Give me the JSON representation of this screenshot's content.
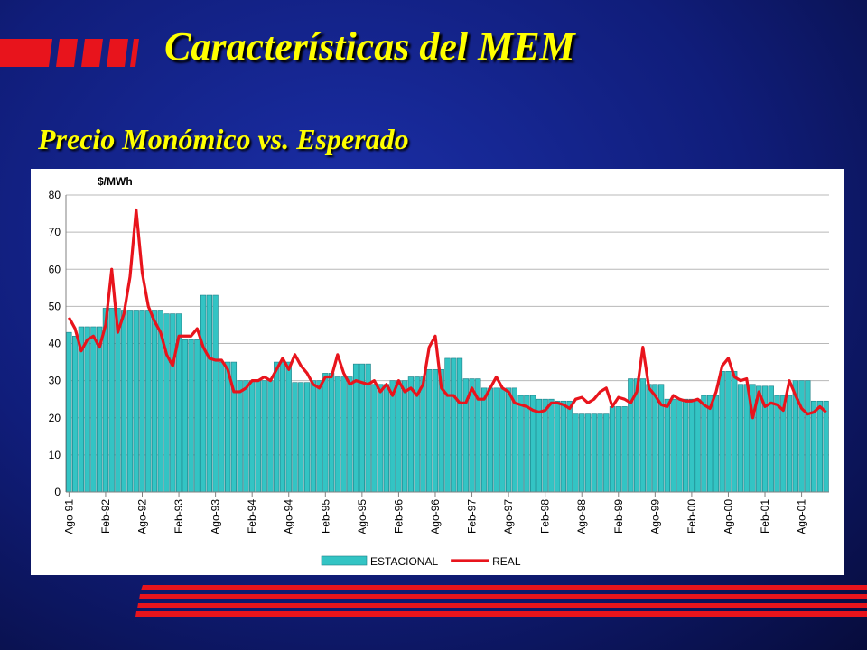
{
  "slide": {
    "title": "Características del MEM",
    "subtitle": "Precio Monómico vs. Esperado"
  },
  "chart_data": {
    "type": "bar-line",
    "y_axis_label": "$/MWh",
    "categories": [
      "Ago-91",
      null,
      null,
      null,
      null,
      null,
      "Feb-92",
      null,
      null,
      null,
      null,
      null,
      "Ago-92",
      null,
      null,
      null,
      null,
      null,
      "Feb-93",
      null,
      null,
      null,
      null,
      null,
      "Ago-93",
      null,
      null,
      null,
      null,
      null,
      "Feb-94",
      null,
      null,
      null,
      null,
      null,
      "Ago-94",
      null,
      null,
      null,
      null,
      null,
      "Feb-95",
      null,
      null,
      null,
      null,
      null,
      "Ago-95",
      null,
      null,
      null,
      null,
      null,
      "Feb-96",
      null,
      null,
      null,
      null,
      null,
      "Ago-96",
      null,
      null,
      null,
      null,
      null,
      "Feb-97",
      null,
      null,
      null,
      null,
      null,
      "Ago-97",
      null,
      null,
      null,
      null,
      null,
      "Feb-98",
      null,
      null,
      null,
      null,
      null,
      "Ago-98",
      null,
      null,
      null,
      null,
      null,
      "Feb-99",
      null,
      null,
      null,
      null,
      null,
      "Ago-99",
      null,
      null,
      null,
      null,
      null,
      "Feb-00",
      null,
      null,
      null,
      null,
      null,
      "Ago-00",
      null,
      null,
      null,
      null,
      null,
      "Feb-01",
      null,
      null,
      null,
      null,
      null,
      "Ago-01",
      null,
      null,
      null,
      null
    ],
    "series": [
      {
        "name": "ESTACIONAL",
        "kind": "bar",
        "color": "#33c4c4",
        "values": [
          43,
          42,
          44.5,
          44.5,
          44.5,
          44.5,
          49.5,
          49.5,
          49.5,
          49,
          49,
          49,
          49,
          49,
          49,
          49,
          48,
          48,
          48,
          41,
          41,
          41,
          53,
          53,
          53,
          35,
          35,
          35,
          30,
          30,
          30,
          30,
          30,
          30,
          35,
          35,
          35,
          29.5,
          29.5,
          29.5,
          30,
          30,
          32,
          32,
          31,
          31,
          31,
          34.5,
          34.5,
          34.5,
          29,
          29,
          29,
          30,
          30,
          30,
          31,
          31,
          31,
          33,
          33,
          33,
          36,
          36,
          36,
          30.5,
          30.5,
          30.5,
          28,
          28,
          28,
          28,
          28,
          28,
          26,
          26,
          26,
          25,
          25,
          25,
          24.5,
          24.5,
          24.5,
          21,
          21,
          21,
          21,
          21,
          21,
          23,
          23,
          23,
          30.5,
          30.5,
          30.5,
          29,
          29,
          29,
          25,
          25,
          25,
          25,
          25,
          25,
          26,
          26,
          26,
          32.5,
          32.5,
          32.5,
          29,
          29,
          29,
          28.5,
          28.5,
          28.5,
          26,
          26,
          26,
          30,
          30,
          30,
          24.5,
          24.5,
          24.5
        ]
      },
      {
        "name": "REAL",
        "kind": "line",
        "color": "#e8141c",
        "values": [
          47,
          44,
          38,
          41,
          42,
          39,
          45,
          60,
          43,
          48,
          58,
          76,
          59,
          50,
          46,
          43,
          37,
          34,
          42,
          42,
          42,
          44,
          39,
          36,
          35.5,
          35.5,
          33,
          27,
          27,
          28,
          30,
          30,
          31,
          30,
          33,
          36,
          33,
          37,
          34,
          32,
          29,
          28,
          31,
          31,
          37,
          32,
          29,
          30,
          29.5,
          29,
          30,
          27,
          29,
          26,
          30,
          27,
          28,
          26,
          29,
          39,
          42,
          28,
          26,
          26,
          24,
          24,
          28,
          25,
          25,
          28,
          31,
          28,
          27,
          24,
          23.5,
          23,
          22,
          21.5,
          22,
          24,
          24,
          23.5,
          22.5,
          25,
          25.5,
          24,
          25,
          27,
          28,
          23,
          25.5,
          25,
          24,
          27,
          39,
          28,
          26,
          23.5,
          23,
          26,
          25,
          24.5,
          24.5,
          25,
          23.5,
          22.5,
          27,
          34,
          36,
          31,
          30,
          30.5,
          20,
          27,
          23,
          24,
          23.5,
          22,
          30,
          26,
          22.5,
          21,
          21.5,
          23,
          21.5
        ]
      }
    ],
    "ylim": [
      0,
      80
    ],
    "yticks": [
      0,
      10,
      20,
      30,
      40,
      50,
      60,
      70,
      80
    ],
    "grid": true
  }
}
